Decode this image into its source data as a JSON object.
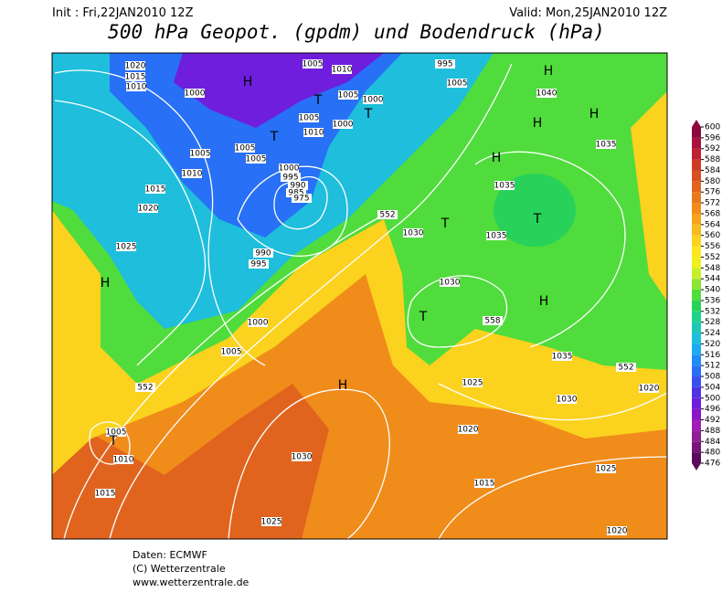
{
  "header": {
    "init": "Init : Fri,22JAN2010 12Z",
    "valid": "Valid: Mon,25JAN2010 12Z",
    "title": "500 hPa Geopot. (gpdm) und Bodendruck (hPa)"
  },
  "colorbar": {
    "levels": [
      476,
      480,
      484,
      488,
      492,
      496,
      500,
      504,
      508,
      512,
      516,
      520,
      524,
      528,
      532,
      536,
      540,
      544,
      548,
      552,
      556,
      560,
      564,
      568,
      572,
      576,
      580,
      584,
      588,
      592,
      596,
      600
    ],
    "colors": [
      "#5a0a5a",
      "#781478",
      "#8c1e96",
      "#a01eb4",
      "#8c14c8",
      "#6e1edc",
      "#5032e6",
      "#3c50f0",
      "#2870f5",
      "#1e8cf5",
      "#1eaaf0",
      "#1ebedc",
      "#1ec8b4",
      "#1ed28c",
      "#28d25a",
      "#50dc3c",
      "#8ae632",
      "#c8f028",
      "#f0f01e",
      "#fde81e",
      "#fbd21e",
      "#f8bb1c",
      "#f5a31a",
      "#f08c1a",
      "#e8781c",
      "#e0641e",
      "#d85020",
      "#d03a25",
      "#c0202f",
      "#a8123c",
      "#8b0a3b"
    ]
  },
  "map": {
    "labels": [
      "1020",
      "1015",
      "1010",
      "1000",
      "1005",
      "1010",
      "1015",
      "1020",
      "1025",
      "1005",
      "1010",
      "995",
      "1005",
      "1005",
      "1000",
      "1000",
      "1005",
      "1010",
      "1005",
      "1005",
      "1000",
      "995",
      "990",
      "985",
      "975",
      "990",
      "995",
      "552",
      "1030",
      "1030",
      "1040",
      "1035",
      "1035",
      "1035",
      "558",
      "1035",
      "552",
      "1030",
      "1025",
      "1020",
      "1000",
      "1005",
      "552",
      "1005",
      "1010",
      "1015",
      "1030",
      "1020",
      "1015",
      "1025",
      "1025",
      "1020"
    ],
    "centers": [
      "H",
      "T",
      "T",
      "T",
      "H",
      "H",
      "H",
      "H",
      "T",
      "T",
      "H",
      "T",
      "H",
      "H",
      "T"
    ]
  },
  "footer": [
    "Daten: ECMWF",
    "(C) Wetterzentrale",
    "www.wetterzentrale.de"
  ]
}
